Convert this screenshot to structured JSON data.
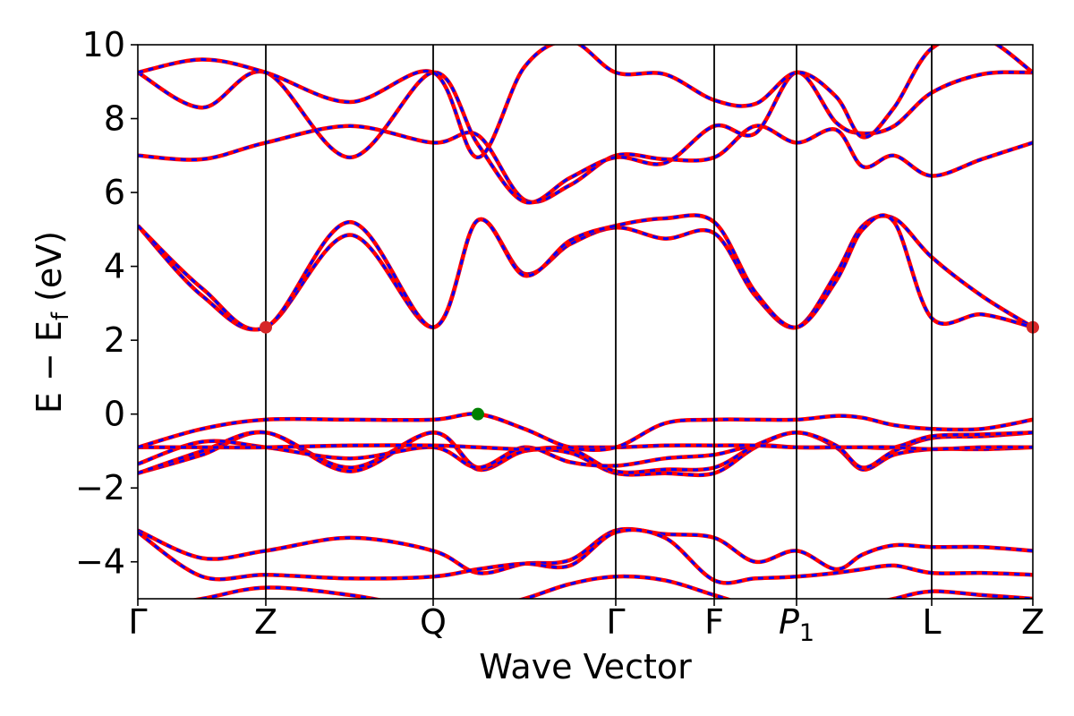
{
  "chart_data": {
    "type": "line",
    "xlabel": "Wave Vector",
    "ylabel": "E − E_f (eV)",
    "ylabel_main": "E − E",
    "ylabel_sub": "f",
    "ylabel_unit": " (eV)",
    "ylim": [
      -5,
      10
    ],
    "yticks": [
      10,
      8,
      6,
      4,
      2,
      0,
      -2,
      -4
    ],
    "ytick_labels": [
      "10",
      "8",
      "6",
      "4",
      "2",
      "0",
      "−2",
      "−4"
    ],
    "kpoint_positions": [
      0,
      1.43,
      3.3,
      5.34,
      6.44,
      7.36,
      8.87,
      10
    ],
    "kpoint_labels": [
      "Γ",
      "Z",
      "Q",
      "Γ",
      "F",
      "P",
      "L",
      "Z"
    ],
    "p1_subscript": "1",
    "xlim": [
      0,
      10
    ],
    "colors": {
      "band_solid": "#ff0000",
      "band_dash": "#0000ff",
      "cbm": "#d62728",
      "vbm": "#008000"
    },
    "band_points_x": [
      0,
      0.72,
      1.43,
      2.37,
      3.3,
      3.8,
      4.32,
      4.83,
      5.34,
      5.89,
      6.44,
      6.9,
      7.36,
      7.8,
      8.1,
      8.45,
      8.87,
      9.43,
      10
    ],
    "series": [
      {
        "values": [
          -5.3,
          -5.0,
          -4.7,
          -4.9,
          -5.3,
          -5.3,
          -5.0,
          -4.6,
          -4.4,
          -4.5,
          -4.9,
          -5.2,
          -5.1,
          -5.3,
          -5.2,
          -5.0,
          -4.8,
          -4.9,
          -5.0
        ]
      },
      {
        "values": [
          -3.15,
          -3.9,
          -3.7,
          -3.35,
          -3.7,
          -4.3,
          -4.05,
          -3.95,
          -3.15,
          -3.25,
          -3.35,
          -4.0,
          -3.7,
          -4.2,
          -3.8,
          -3.55,
          -3.6,
          -3.6,
          -3.7
        ]
      },
      {
        "values": [
          -3.2,
          -4.4,
          -4.35,
          -4.45,
          -4.4,
          -4.2,
          -4.05,
          -4.1,
          -3.2,
          -3.35,
          -4.5,
          -4.45,
          -4.4,
          -4.3,
          -4.2,
          -4.1,
          -4.3,
          -4.3,
          -4.35
        ]
      },
      {
        "values": [
          -1.6,
          -1.1,
          -0.5,
          -1.55,
          -0.5,
          -1.5,
          -1.0,
          -1.05,
          -1.6,
          -1.6,
          -1.6,
          -0.9,
          -0.5,
          -0.9,
          -1.5,
          -1.1,
          -0.95,
          -0.95,
          -0.9
        ]
      },
      {
        "values": [
          -1.6,
          -1.0,
          -0.5,
          -1.45,
          -0.5,
          -1.45,
          -1.0,
          -0.95,
          -1.55,
          -1.5,
          -1.45,
          -0.85,
          -0.5,
          -0.85,
          -1.45,
          -1.0,
          -0.65,
          -0.6,
          -0.5
        ]
      },
      {
        "values": [
          -1.35,
          -0.75,
          -0.9,
          -1.2,
          -0.9,
          -1.45,
          -0.9,
          -1.3,
          -1.4,
          -1.2,
          -1.1,
          -0.85,
          -0.9,
          -0.9,
          -0.9,
          -0.9,
          -0.6,
          -0.55,
          -0.5
        ]
      },
      {
        "values": [
          -0.9,
          -0.9,
          -0.9,
          -0.85,
          -0.85,
          -0.9,
          -0.95,
          -0.9,
          -0.9,
          -0.85,
          -0.85,
          -0.85,
          -0.9,
          -0.9,
          -0.9,
          -0.9,
          -0.95,
          -0.9,
          -0.9
        ]
      },
      {
        "values": [
          -0.9,
          -0.4,
          -0.15,
          -0.15,
          -0.15,
          0.0,
          -0.4,
          -0.9,
          -0.9,
          -0.25,
          -0.15,
          -0.15,
          -0.15,
          -0.05,
          -0.1,
          -0.3,
          -0.4,
          -0.4,
          -0.15
        ]
      },
      {
        "values": [
          5.1,
          3.2,
          2.35,
          4.85,
          2.35,
          5.25,
          3.8,
          4.6,
          5.05,
          4.75,
          4.9,
          3.2,
          2.35,
          3.8,
          5.1,
          5.3,
          4.25,
          3.2,
          2.35
        ]
      },
      {
        "values": [
          5.1,
          3.4,
          2.35,
          5.2,
          2.35,
          5.25,
          3.75,
          4.7,
          5.1,
          5.3,
          5.2,
          3.3,
          2.35,
          3.6,
          5.0,
          5.2,
          2.6,
          2.7,
          2.35
        ]
      },
      {
        "values": [
          7.0,
          6.9,
          7.35,
          7.8,
          7.35,
          7.55,
          5.8,
          6.2,
          7.0,
          6.9,
          6.95,
          7.8,
          7.35,
          7.7,
          6.7,
          7.0,
          6.45,
          6.9,
          7.35
        ]
      },
      {
        "values": [
          9.25,
          8.3,
          9.25,
          6.95,
          9.25,
          7.3,
          5.75,
          6.4,
          6.95,
          6.8,
          7.8,
          7.6,
          9.25,
          7.9,
          7.6,
          7.8,
          8.7,
          9.2,
          9.25
        ]
      },
      {
        "values": [
          9.25,
          9.6,
          9.25,
          8.45,
          9.25,
          6.95,
          9.4,
          10.1,
          9.25,
          9.2,
          8.5,
          8.4,
          9.25,
          8.6,
          7.5,
          8.3,
          9.9,
          10.2,
          9.25
        ]
      }
    ],
    "cbm_points": [
      {
        "x": 1.43,
        "y": 2.35
      },
      {
        "x": 10,
        "y": 2.35
      }
    ],
    "vbm_points": [
      {
        "x": 3.8,
        "y": 0.0
      }
    ]
  }
}
